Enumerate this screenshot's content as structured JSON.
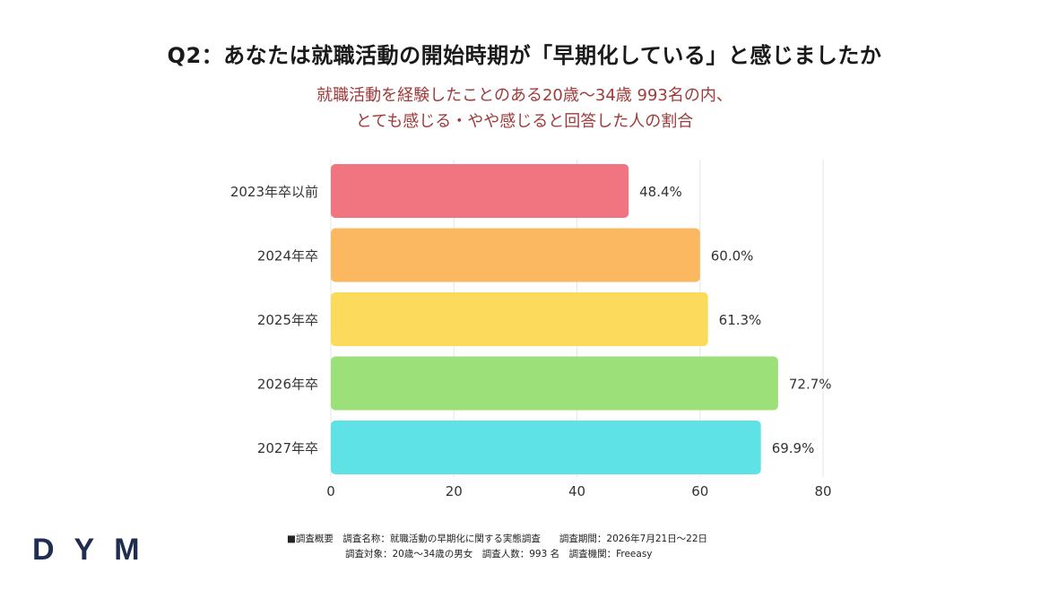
{
  "title": "Q2：あなたは就職活動の開始時期が「早期化している」と感じましたか",
  "subtitle_line1": "就職活動を経験したことのある20歳〜34歳 993名の内、",
  "subtitle_line2": "とても感じる・やや感じると回答した人の割合",
  "colors": {
    "title": "#1a1a1a",
    "subtitle": "#a03a3a",
    "logo": "#1f2d4f",
    "grid": "#e6e6e6"
  },
  "chart_data": {
    "type": "bar",
    "orientation": "horizontal",
    "categories": [
      "2023年卒以前",
      "2024年卒",
      "2025年卒",
      "2026年卒",
      "2027年卒"
    ],
    "values": [
      48.4,
      60.0,
      61.3,
      72.7,
      69.9
    ],
    "value_labels": [
      "48.4%",
      "60.0%",
      "61.3%",
      "72.7%",
      "69.9%"
    ],
    "bar_colors": [
      "#f07580",
      "#fbb860",
      "#fcdb5c",
      "#9ce07a",
      "#5fe2e6"
    ],
    "xlim": [
      0,
      80
    ],
    "xticks": [
      "0",
      "20",
      "40",
      "60",
      "80"
    ],
    "grid": true,
    "legend": "none"
  },
  "footnote": {
    "line1": "■調査概要　調査名称：就職活動の早期化に関する実態調査　　調査期間：2026年7月21日〜22日",
    "line2": "調査対象：20歳〜34歳の男女　調査人数：993 名　調査機関：Freeasy"
  },
  "logo_text": "DYM"
}
